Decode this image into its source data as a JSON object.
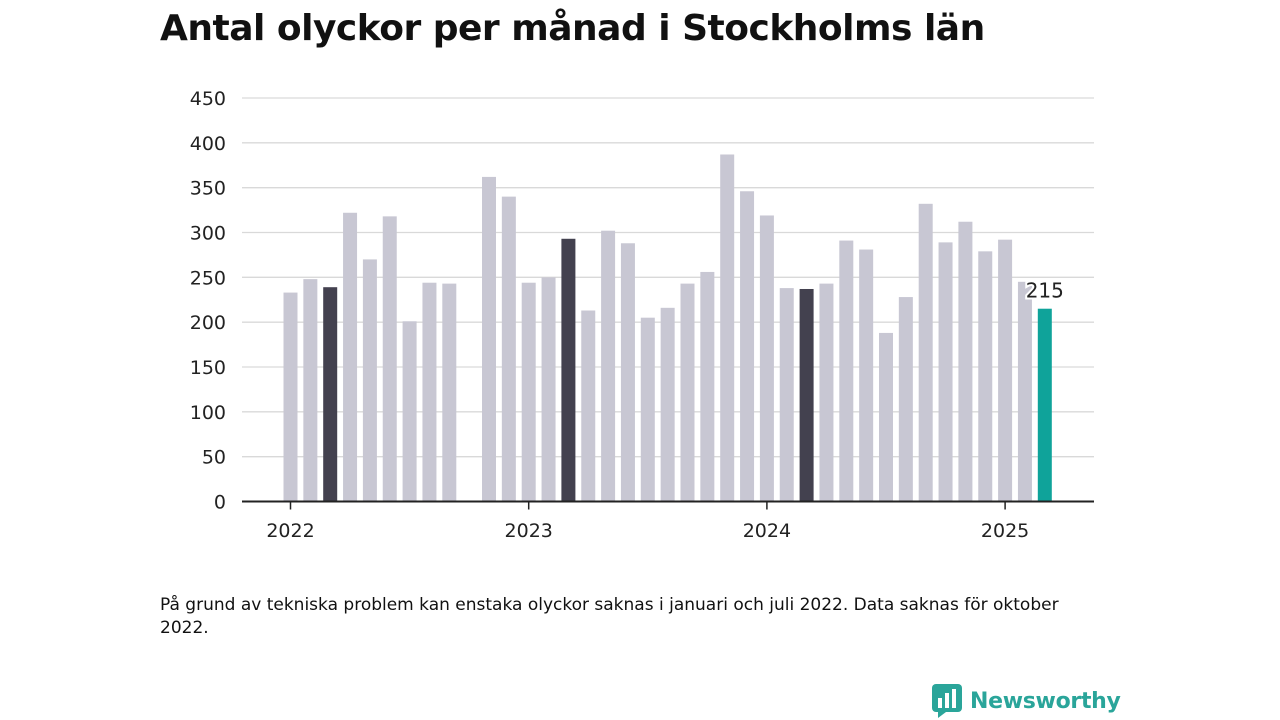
{
  "title": "Antal olyckor per månad i Stockholms län",
  "footnote": "På grund av tekniska problem kan enstaka olyckor saknas i januari och juli 2022. Data saknas för oktober 2022.",
  "brand": {
    "name": "Newsworthy",
    "icon": "newsworthy-logo-icon",
    "color": "#2aa59a"
  },
  "chart_data": {
    "type": "bar",
    "title": "Antal olyckor per månad i Stockholms län",
    "xlabel": "",
    "ylabel": "",
    "ylim": [
      0,
      450
    ],
    "yticks": [
      0,
      50,
      100,
      150,
      200,
      250,
      300,
      350,
      400,
      450
    ],
    "xtick_labels": [
      "2022",
      "2023",
      "2024",
      "2025"
    ],
    "grid": true,
    "colors": {
      "default": "#c8c7d3",
      "highlight": "#43414f",
      "latest": "#0fa39a"
    },
    "value_label": "215",
    "bars": [
      {
        "date": "2022-01",
        "value": 233,
        "style": "default"
      },
      {
        "date": "2022-02",
        "value": 248,
        "style": "default"
      },
      {
        "date": "2022-03",
        "value": 239,
        "style": "highlight"
      },
      {
        "date": "2022-04",
        "value": 322,
        "style": "default"
      },
      {
        "date": "2022-05",
        "value": 270,
        "style": "default"
      },
      {
        "date": "2022-06",
        "value": 318,
        "style": "default"
      },
      {
        "date": "2022-07",
        "value": 201,
        "style": "default"
      },
      {
        "date": "2022-08",
        "value": 244,
        "style": "default"
      },
      {
        "date": "2022-09",
        "value": 243,
        "style": "default"
      },
      {
        "date": "2022-10",
        "value": null,
        "style": "default"
      },
      {
        "date": "2022-11",
        "value": 362,
        "style": "default"
      },
      {
        "date": "2022-12",
        "value": 340,
        "style": "default"
      },
      {
        "date": "2023-01",
        "value": 244,
        "style": "default"
      },
      {
        "date": "2023-02",
        "value": 250,
        "style": "default"
      },
      {
        "date": "2023-03",
        "value": 293,
        "style": "highlight"
      },
      {
        "date": "2023-04",
        "value": 213,
        "style": "default"
      },
      {
        "date": "2023-05",
        "value": 302,
        "style": "default"
      },
      {
        "date": "2023-06",
        "value": 288,
        "style": "default"
      },
      {
        "date": "2023-07",
        "value": 205,
        "style": "default"
      },
      {
        "date": "2023-08",
        "value": 216,
        "style": "default"
      },
      {
        "date": "2023-09",
        "value": 243,
        "style": "default"
      },
      {
        "date": "2023-10",
        "value": 256,
        "style": "default"
      },
      {
        "date": "2023-11",
        "value": 387,
        "style": "default"
      },
      {
        "date": "2023-12",
        "value": 346,
        "style": "default"
      },
      {
        "date": "2024-01",
        "value": 319,
        "style": "default"
      },
      {
        "date": "2024-02",
        "value": 238,
        "style": "default"
      },
      {
        "date": "2024-03",
        "value": 237,
        "style": "highlight"
      },
      {
        "date": "2024-04",
        "value": 243,
        "style": "default"
      },
      {
        "date": "2024-05",
        "value": 291,
        "style": "default"
      },
      {
        "date": "2024-06",
        "value": 281,
        "style": "default"
      },
      {
        "date": "2024-07",
        "value": 188,
        "style": "default"
      },
      {
        "date": "2024-08",
        "value": 228,
        "style": "default"
      },
      {
        "date": "2024-09",
        "value": 332,
        "style": "default"
      },
      {
        "date": "2024-10",
        "value": 289,
        "style": "default"
      },
      {
        "date": "2024-11",
        "value": 312,
        "style": "default"
      },
      {
        "date": "2024-12",
        "value": 279,
        "style": "default"
      },
      {
        "date": "2025-01",
        "value": 292,
        "style": "default"
      },
      {
        "date": "2025-02",
        "value": 245,
        "style": "default"
      },
      {
        "date": "2025-03",
        "value": 215,
        "style": "latest"
      }
    ]
  }
}
